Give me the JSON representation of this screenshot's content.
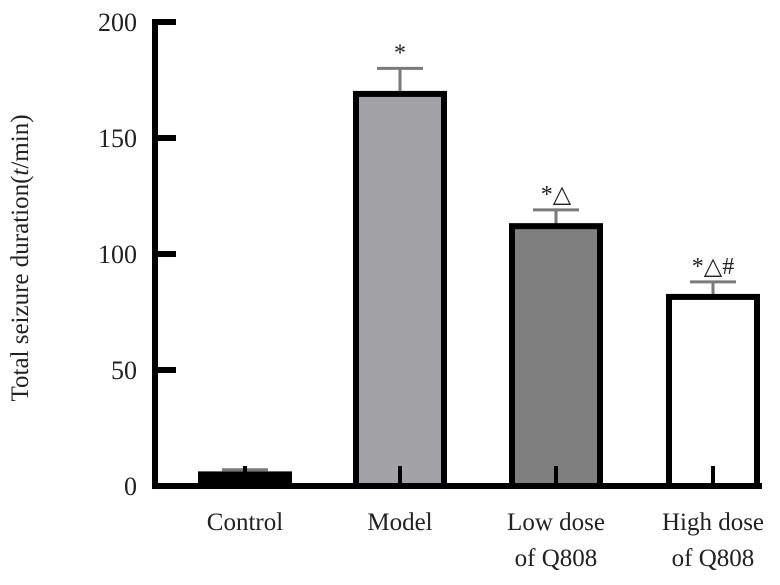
{
  "chart_data": {
    "type": "bar",
    "title": "",
    "xlabel": "",
    "ylabel": "Total seizure duration(",
    "ylabel_italic": "t",
    "ylabel_suffix": "/min)",
    "ylim": [
      0,
      200
    ],
    "yticks": [
      0,
      50,
      100,
      150,
      200
    ],
    "ytick_labels": [
      "0",
      "50",
      "100",
      "150",
      "200"
    ],
    "grid": false,
    "categories": [
      {
        "line1": "Control",
        "line2": ""
      },
      {
        "line1": "Model",
        "line2": ""
      },
      {
        "line1": "Low dose",
        "line2": "of Q808"
      },
      {
        "line1": "High dose",
        "line2": "of Q808"
      }
    ],
    "values": [
      5,
      169,
      112,
      81.5
    ],
    "errors": [
      2,
      11,
      7,
      6.5
    ],
    "significance": [
      "",
      "*",
      "*△",
      "*△#"
    ],
    "bar_colors": [
      "#000000",
      "#a3a2a7",
      "#7f7f7f",
      "#ffffff"
    ],
    "edge_color": "#000000",
    "error_color": "#7a7a7a"
  }
}
